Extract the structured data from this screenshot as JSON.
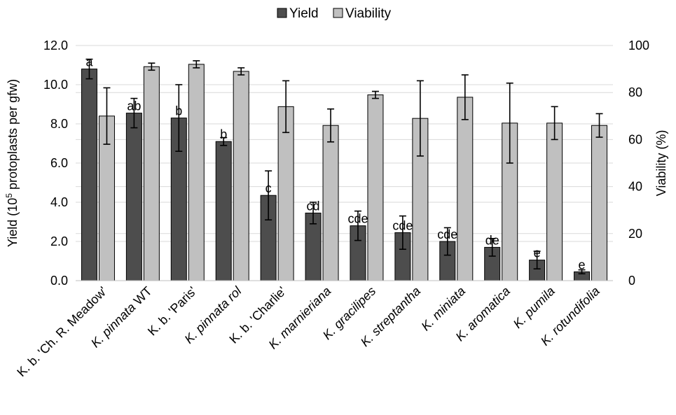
{
  "chart_data": {
    "type": "bar",
    "categories": [
      {
        "pre": "K. b. ",
        "italic": "",
        "post": "'Ch. R. Meadow'"
      },
      {
        "pre": "",
        "italic": "K. pinnata",
        "post": " WT"
      },
      {
        "pre": "K. b. ",
        "italic": "",
        "post": "'Paris'"
      },
      {
        "pre": "",
        "italic": "K. pinnata rol",
        "post": ""
      },
      {
        "pre": "K. b. ",
        "italic": "",
        "post": "'Charlie'"
      },
      {
        "pre": "",
        "italic": "K. marnieriana",
        "post": ""
      },
      {
        "pre": "",
        "italic": "K. gracilipes",
        "post": ""
      },
      {
        "pre": "",
        "italic": "K. streptantha",
        "post": ""
      },
      {
        "pre": "",
        "italic": "K. miniata",
        "post": ""
      },
      {
        "pre": "",
        "italic": "K. aromatica",
        "post": ""
      },
      {
        "pre": "",
        "italic": "K. pumila",
        "post": ""
      },
      {
        "pre": "",
        "italic": "K. rotundifolia",
        "post": ""
      }
    ],
    "series": [
      {
        "name": "Yield",
        "axis": "left",
        "color": "#4d4d4d",
        "values": [
          10.8,
          8.55,
          8.3,
          7.1,
          4.35,
          3.45,
          2.8,
          2.45,
          2.0,
          1.7,
          1.05,
          0.45
        ],
        "errors": [
          0.5,
          0.75,
          1.7,
          0.2,
          1.25,
          0.55,
          0.75,
          0.85,
          0.7,
          0.45,
          0.45,
          0.1
        ],
        "labels": [
          "a",
          "ab",
          "b",
          "b",
          "c",
          "cd",
          "cde",
          "cde",
          "cde",
          "de",
          "e",
          "e"
        ]
      },
      {
        "name": "Viability",
        "axis": "right",
        "color": "#c0c0c0",
        "values": [
          70,
          91,
          92,
          89,
          74,
          66,
          79,
          69,
          78,
          67,
          67,
          66
        ],
        "errors": [
          12,
          1.5,
          1.5,
          1.5,
          11,
          7,
          1.5,
          16,
          9.5,
          17,
          7,
          5
        ]
      }
    ],
    "ylabel_left": {
      "pre": "Yield (10",
      "sup": "5",
      "post": " protoplasts per gfw)"
    },
    "ylabel_right": "Viability (%)",
    "ylim_left": [
      0,
      12
    ],
    "ylim_right": [
      0,
      100
    ],
    "yticks_left": [
      "0.0",
      "2.0",
      "4.0",
      "6.0",
      "8.0",
      "10.0",
      "12.0"
    ],
    "yticks_right": [
      "0",
      "20",
      "40",
      "60",
      "80",
      "100"
    ],
    "legend": {
      "position": "top-center",
      "entries": [
        "Yield",
        "Viability"
      ]
    },
    "grid": {
      "horizontal": true,
      "color": "#d9d9d9"
    }
  }
}
